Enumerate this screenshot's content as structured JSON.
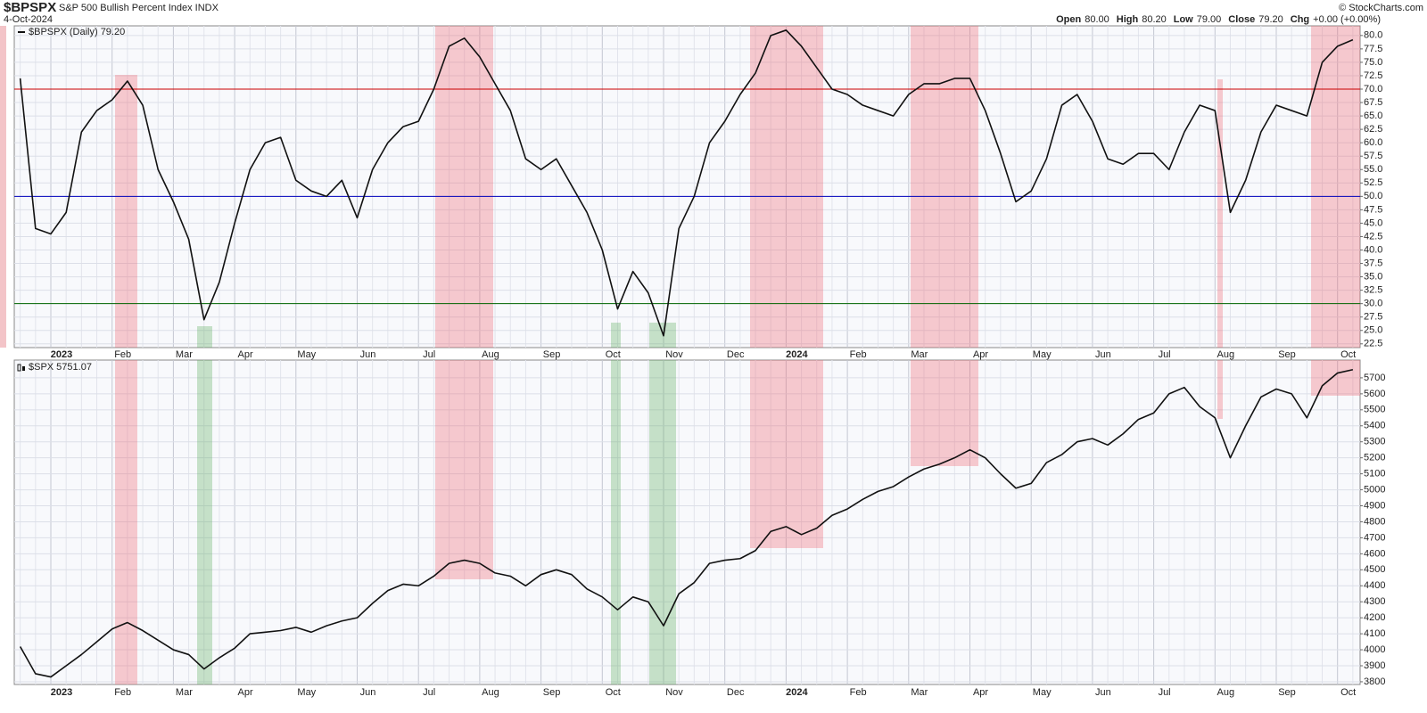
{
  "chart_data": [
    {
      "type": "line",
      "title": "$BPSPX",
      "subtitle": "S&P 500 Bullish Percent Index INDX",
      "date": "4-Oct-2024",
      "quote": [
        {
          "label": "Open",
          "value": "80.00"
        },
        {
          "label": "High",
          "value": "80.20"
        },
        {
          "label": "Low",
          "value": "79.00"
        },
        {
          "label": "Close",
          "value": "79.20"
        },
        {
          "label": "Chg",
          "value": "+0.00 (+0.00%)"
        }
      ],
      "credit": "© StockCharts.com",
      "categories": [
        null,
        null,
        null,
        null,
        "2023",
        null,
        null,
        null,
        "Feb",
        null,
        null,
        null,
        "Mar",
        null,
        null,
        null,
        "Apr",
        null,
        null,
        null,
        "May",
        null,
        null,
        null,
        "Jun",
        null,
        null,
        null,
        "Jul",
        null,
        null,
        null,
        "Aug",
        null,
        null,
        null,
        "Sep",
        null,
        null,
        null,
        "Oct",
        null,
        null,
        null,
        "Nov",
        null,
        null,
        null,
        "Dec",
        null,
        null,
        null,
        "2024",
        null,
        null,
        null,
        "Feb",
        null,
        null,
        null,
        "Mar",
        null,
        null,
        null,
        "Apr",
        null,
        null,
        null,
        "May",
        null,
        null,
        null,
        "Jun",
        null,
        null,
        null,
        "Jul",
        null,
        null,
        null,
        "Aug",
        null,
        null,
        null,
        "Sep",
        null,
        null,
        null,
        "Oct",
        null
      ],
      "series": [
        {
          "name": "$BPSPX (Daily) 79.20",
          "color": "#111111",
          "values": [
            null,
            null,
            72,
            44,
            43,
            47,
            62,
            66,
            68,
            71.5,
            67,
            55,
            49,
            42,
            27,
            34,
            45,
            55,
            60,
            61,
            53,
            51,
            50,
            53,
            46,
            55,
            60,
            63,
            64,
            70,
            78,
            79.5,
            76,
            71,
            66,
            57,
            55,
            57,
            52,
            47,
            40,
            29,
            36,
            32,
            24,
            44,
            50,
            60,
            64,
            69,
            73,
            80,
            81,
            78,
            74,
            70,
            69,
            67,
            66,
            65,
            69,
            71,
            71,
            72,
            72,
            66,
            58,
            49,
            51,
            57,
            67,
            69,
            64,
            57,
            56,
            58,
            58,
            55,
            62,
            67,
            66,
            47,
            53,
            62,
            67,
            66,
            65,
            75,
            78,
            79.2
          ]
        }
      ],
      "hlines": [
        {
          "value": 70,
          "color": "#cc0000"
        },
        {
          "value": 50,
          "color": "#0000bb"
        },
        {
          "value": 30,
          "color": "#006600"
        }
      ],
      "ylim": [
        21.8,
        81.8
      ],
      "yticks": [
        22.5,
        {
          "value": 25,
          "label": "25.0"
        },
        27.5,
        {
          "value": 30,
          "label": "30.0"
        },
        32.5,
        {
          "value": 35,
          "label": "35.0"
        },
        37.5,
        {
          "value": 40,
          "label": "40.0"
        },
        42.5,
        {
          "value": 45,
          "label": "45.0"
        },
        47.5,
        {
          "value": 50,
          "label": "50.0"
        },
        52.5,
        {
          "value": 55,
          "label": "55.0"
        },
        57.5,
        {
          "value": 60,
          "label": "60.0"
        },
        62.5,
        {
          "value": 65,
          "label": "65.0"
        },
        67.5,
        {
          "value": 70,
          "label": "70.0"
        },
        72.5,
        {
          "value": 75,
          "label": "75.0"
        },
        77.5,
        {
          "value": 80,
          "label": "80.0"
        }
      ],
      "grid": true
    },
    {
      "type": "line",
      "categories": [
        null,
        null,
        null,
        null,
        "2023",
        null,
        null,
        null,
        "Feb",
        null,
        null,
        null,
        "Mar",
        null,
        null,
        null,
        "Apr",
        null,
        null,
        null,
        "May",
        null,
        null,
        null,
        "Jun",
        null,
        null,
        null,
        "Jul",
        null,
        null,
        null,
        "Aug",
        null,
        null,
        null,
        "Sep",
        null,
        null,
        null,
        "Oct",
        null,
        null,
        null,
        "Nov",
        null,
        null,
        null,
        "Dec",
        null,
        null,
        null,
        "2024",
        null,
        null,
        null,
        "Feb",
        null,
        null,
        null,
        "Mar",
        null,
        null,
        null,
        "Apr",
        null,
        null,
        null,
        "May",
        null,
        null,
        null,
        "Jun",
        null,
        null,
        null,
        "Jul",
        null,
        null,
        null,
        "Aug",
        null,
        null,
        null,
        "Sep",
        null,
        null,
        null,
        "Oct",
        null
      ],
      "series": [
        {
          "name": "$SPX 5751.07",
          "color": "#111111",
          "values": [
            null,
            null,
            4020,
            3850,
            3830,
            3900,
            3970,
            4050,
            4130,
            4170,
            4120,
            4060,
            4000,
            3970,
            3880,
            3950,
            4010,
            4100,
            4110,
            4120,
            4140,
            4110,
            4150,
            4180,
            4200,
            4290,
            4370,
            4410,
            4400,
            4460,
            4540,
            4560,
            4540,
            4480,
            4460,
            4400,
            4470,
            4500,
            4470,
            4380,
            4330,
            4250,
            4330,
            4300,
            4150,
            4350,
            4420,
            4540,
            4560,
            4570,
            4620,
            4740,
            4770,
            4720,
            4760,
            4840,
            4880,
            4940,
            4990,
            5020,
            5080,
            5130,
            5160,
            5200,
            5250,
            5200,
            5100,
            5010,
            5040,
            5170,
            5220,
            5300,
            5320,
            5280,
            5350,
            5440,
            5480,
            5600,
            5640,
            5520,
            5450,
            5200,
            5400,
            5580,
            5630,
            5600,
            5450,
            5650,
            5730,
            5751.07
          ]
        }
      ],
      "ylim": [
        3783,
        5811
      ],
      "yticks": [
        3800,
        3900,
        4000,
        4100,
        4200,
        4300,
        4400,
        4500,
        4600,
        4700,
        4800,
        4900,
        5000,
        5100,
        5200,
        5300,
        5400,
        5500,
        5600,
        5700
      ],
      "grid": true
    }
  ]
}
